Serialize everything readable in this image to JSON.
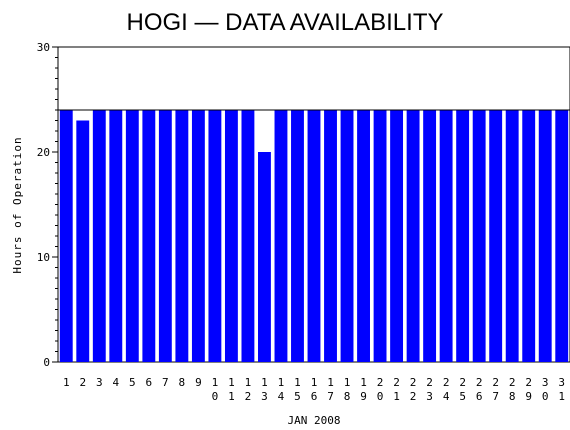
{
  "chart_data": {
    "type": "bar",
    "title": "HOGI — DATA AVAILABILITY",
    "xlabel": "JAN 2008",
    "ylabel": "Hours of Operation",
    "ylim": [
      0,
      30
    ],
    "yticks": [
      0,
      10,
      20,
      30
    ],
    "reference_line": 24,
    "bar_color": "#0000ff",
    "categories": [
      "1",
      "2",
      "3",
      "4",
      "5",
      "6",
      "7",
      "8",
      "9",
      "10",
      "11",
      "12",
      "13",
      "14",
      "15",
      "16",
      "17",
      "18",
      "19",
      "20",
      "21",
      "22",
      "23",
      "24",
      "25",
      "26",
      "27",
      "28",
      "29",
      "30",
      "31"
    ],
    "values": [
      24,
      23,
      24,
      24,
      24,
      24,
      24,
      24,
      24,
      24,
      24,
      24,
      20,
      24,
      24,
      24,
      24,
      24,
      24,
      24,
      24,
      24,
      24,
      24,
      24,
      24,
      24,
      24,
      24,
      24,
      24
    ]
  }
}
